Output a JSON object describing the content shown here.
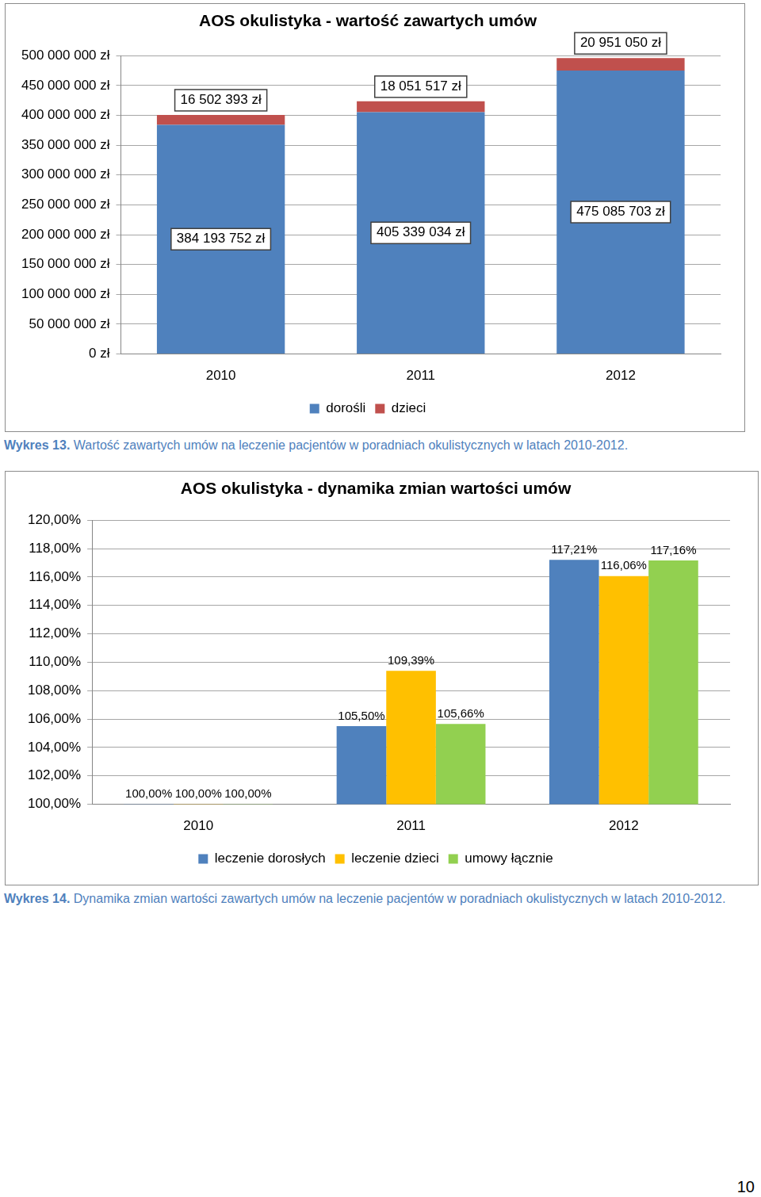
{
  "chart_data": [
    {
      "type": "bar",
      "title": "AOS okulistyka - wartość zawartych umów",
      "categories": [
        "2010",
        "2011",
        "2012"
      ],
      "series": [
        {
          "name": "dorośli",
          "color": "#4f81bd",
          "values": [
            384193752,
            405339034,
            475085703
          ],
          "value_labels": [
            "384 193 752 zł",
            "405 339 034 zł",
            "475 085 703 zł"
          ]
        },
        {
          "name": "dzieci",
          "color": "#c0504d",
          "values": [
            16502393,
            18051517,
            20951050
          ],
          "value_labels": [
            "16 502 393 zł",
            "18 051 517 zł",
            "20 951 050 zł"
          ]
        }
      ],
      "stacked": true,
      "ylim": [
        0,
        500000000
      ],
      "yticks": [
        {
          "value": 0,
          "label": "0 zł"
        },
        {
          "value": 50000000,
          "label": "50 000 000 zł"
        },
        {
          "value": 100000000,
          "label": "100 000 000 zł"
        },
        {
          "value": 150000000,
          "label": "150 000 000 zł"
        },
        {
          "value": 200000000,
          "label": "200 000 000 zł"
        },
        {
          "value": 250000000,
          "label": "250 000 000 zł"
        },
        {
          "value": 300000000,
          "label": "300 000 000 zł"
        },
        {
          "value": 350000000,
          "label": "350 000 000 zł"
        },
        {
          "value": 400000000,
          "label": "400 000 000 zł"
        },
        {
          "value": 450000000,
          "label": "450 000 000 zł"
        },
        {
          "value": 500000000,
          "label": "500 000 000 zł"
        }
      ],
      "grid": true,
      "legend": "bottom",
      "data_labels": true
    },
    {
      "type": "bar",
      "title": "AOS okulistyka - dynamika zmian wartości umów",
      "categories": [
        "2010",
        "2011",
        "2012"
      ],
      "series": [
        {
          "name": "leczenie dorosłych",
          "color": "#4f81bd",
          "values": [
            100,
            105.5,
            117.21
          ],
          "value_labels": [
            "100,00%",
            "105,50%",
            "117,21%"
          ]
        },
        {
          "name": "leczenie dzieci",
          "color": "#ffc000",
          "values": [
            100,
            109.39,
            116.06
          ],
          "value_labels": [
            "100,00%",
            "109,39%",
            "116,06%"
          ]
        },
        {
          "name": "umowy łącznie",
          "color": "#92d050",
          "values": [
            100,
            105.66,
            117.16
          ],
          "value_labels": [
            "100,00%",
            "105,66%",
            "117,16%"
          ]
        }
      ],
      "stacked": false,
      "ylim": [
        100,
        120
      ],
      "yticks": [
        {
          "value": 100,
          "label": "100,00%"
        },
        {
          "value": 102,
          "label": "102,00%"
        },
        {
          "value": 104,
          "label": "104,00%"
        },
        {
          "value": 106,
          "label": "106,00%"
        },
        {
          "value": 108,
          "label": "108,00%"
        },
        {
          "value": 110,
          "label": "110,00%"
        },
        {
          "value": 112,
          "label": "112,00%"
        },
        {
          "value": 114,
          "label": "114,00%"
        },
        {
          "value": 116,
          "label": "116,00%"
        },
        {
          "value": 118,
          "label": "118,00%"
        },
        {
          "value": 120,
          "label": "120,00%"
        }
      ],
      "grid": true,
      "legend": "bottom",
      "data_labels": true
    }
  ],
  "captions": [
    {
      "label": "Wykres 13.",
      "text": "Wartość zawartych umów na leczenie pacjentów w poradniach okulistycznych w latach 2010-2012."
    },
    {
      "label": "Wykres 14.",
      "text": "Dynamika zmian wartości zawartych umów na leczenie pacjentów w poradniach okulistycznych w latach 2010-2012."
    }
  ],
  "page_number": "10"
}
